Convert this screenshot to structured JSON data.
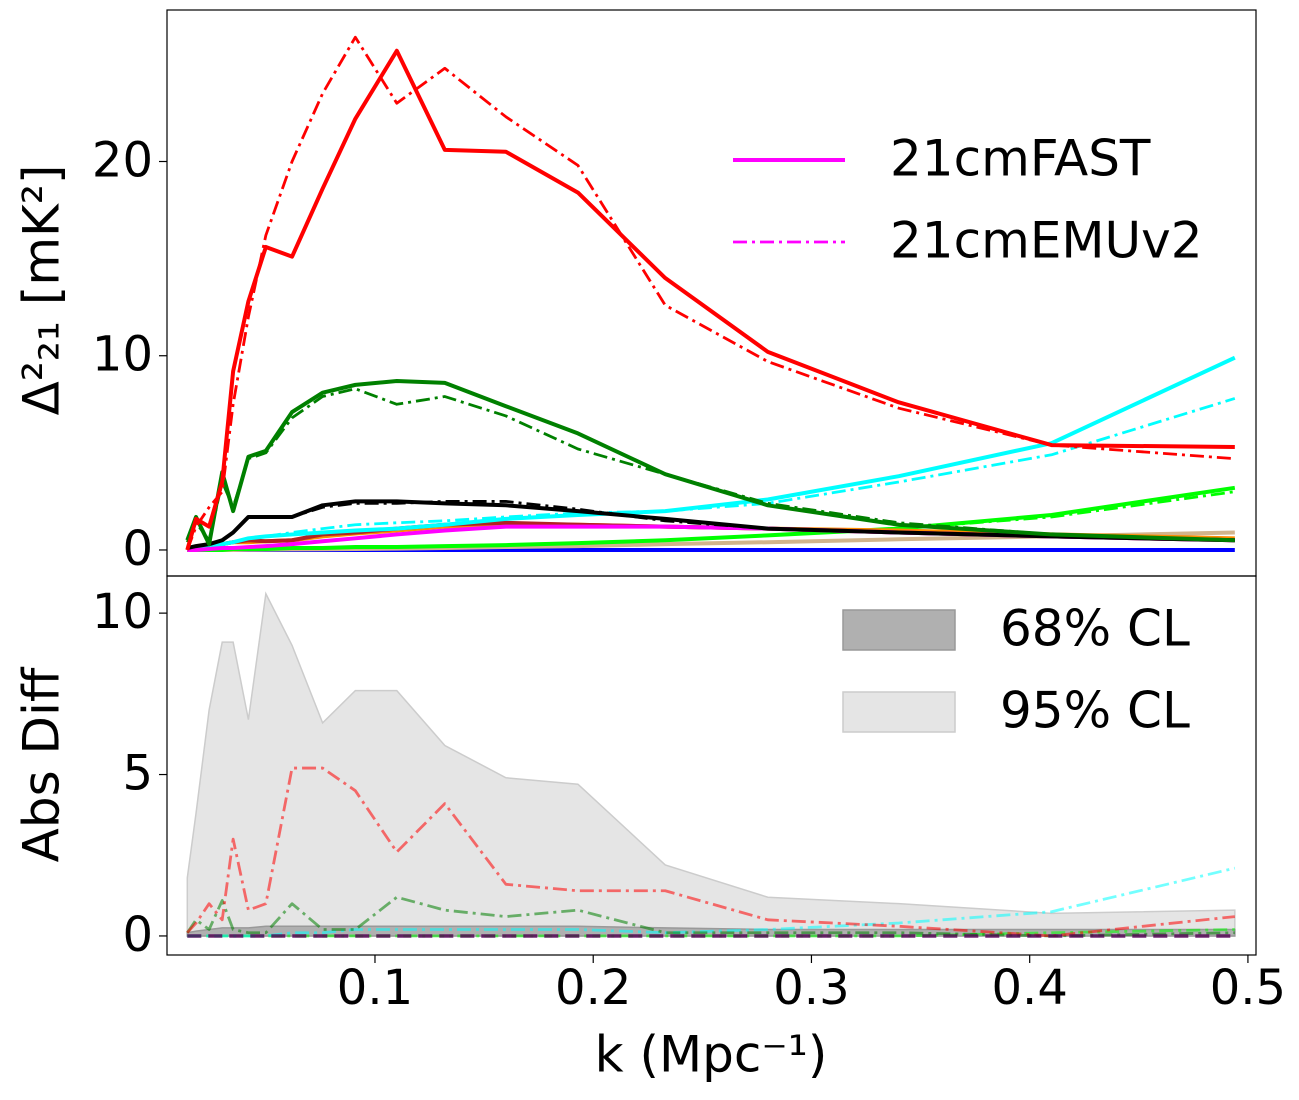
{
  "chart_data": [
    {
      "type": "line",
      "ylabel": "Δ²₂₁ [mK²]",
      "x": [
        0.014,
        0.018,
        0.024,
        0.03,
        0.035,
        0.042,
        0.05,
        0.062,
        0.076,
        0.091,
        0.11,
        0.132,
        0.16,
        0.193,
        0.233,
        0.28,
        0.34,
        0.41,
        0.494
      ],
      "xlim": [
        0.0047,
        0.5037
      ],
      "ylim": [
        -1.34,
        27.8
      ],
      "yticks": [
        0,
        10,
        20
      ],
      "legend": [
        {
          "label": "21cmFAST",
          "color": "#ff00ff",
          "style": "solid"
        },
        {
          "label": "21cmEMUv2",
          "color": "#ff00ff",
          "style": "dashdot"
        }
      ],
      "series": [
        {
          "color": "#0000ff",
          "style": "solid",
          "values": [
            0,
            0,
            0,
            0,
            0,
            0,
            0,
            0,
            0,
            0,
            0,
            0,
            0,
            0,
            0,
            0,
            0,
            0,
            0
          ]
        },
        {
          "color": "#d2b48c",
          "style": "solid",
          "values": [
            0,
            0,
            0,
            0,
            0,
            0.01,
            0.02,
            0.03,
            0.04,
            0.05,
            0.07,
            0.1,
            0.15,
            0.2,
            0.3,
            0.4,
            0.55,
            0.7,
            0.9
          ]
        },
        {
          "color": "#00ff00",
          "style": "solid",
          "values": [
            0,
            0,
            0,
            0,
            0.05,
            0.05,
            0.05,
            0.1,
            0.1,
            0.15,
            0.15,
            0.2,
            0.25,
            0.35,
            0.5,
            0.75,
            1.1,
            1.8,
            3.2
          ]
        },
        {
          "color": "#00ff00",
          "style": "dashdot",
          "values": [
            0,
            0,
            0,
            0,
            0.05,
            0.05,
            0.05,
            0.1,
            0.1,
            0.15,
            0.15,
            0.2,
            0.25,
            0.35,
            0.5,
            0.75,
            1.1,
            1.7,
            3.0
          ]
        },
        {
          "color": "#ff8c00",
          "style": "solid",
          "values": [
            0,
            0.1,
            0.2,
            0.3,
            0.4,
            0.4,
            0.45,
            0.5,
            0.7,
            0.85,
            1.0,
            1.2,
            1.3,
            1.3,
            1.2,
            1.1,
            1.0,
            0.8,
            0.6
          ]
        },
        {
          "color": "#b22222",
          "style": "solid",
          "values": [
            0,
            0.1,
            0.2,
            0.3,
            0.4,
            0.5,
            0.45,
            0.5,
            0.8,
            0.9,
            1.1,
            1.3,
            1.4,
            1.3,
            1.2,
            1.1,
            0.9,
            0.7,
            0.5
          ]
        },
        {
          "color": "#00ffff",
          "style": "solid",
          "values": [
            0,
            0.1,
            0.2,
            0.3,
            0.4,
            0.6,
            0.7,
            0.8,
            0.9,
            1.0,
            1.1,
            1.3,
            1.6,
            1.8,
            2.0,
            2.6,
            3.8,
            5.5,
            9.9
          ]
        },
        {
          "color": "#00ffff",
          "style": "dashdot",
          "values": [
            0,
            0.1,
            0.2,
            0.3,
            0.4,
            0.6,
            0.7,
            0.9,
            1.1,
            1.3,
            1.4,
            1.5,
            1.7,
            1.9,
            2.0,
            2.4,
            3.5,
            4.9,
            7.8
          ]
        },
        {
          "color": "#ff00ff",
          "style": "solid",
          "values": [
            0,
            0,
            0.05,
            0.1,
            0.1,
            0.15,
            0.2,
            0.3,
            0.45,
            0.6,
            0.8,
            1.0,
            1.2,
            1.2,
            1.2,
            1.1,
            0.9,
            0.7,
            0.5
          ]
        },
        {
          "color": "#000000",
          "style": "solid",
          "values": [
            0.1,
            0.2,
            0.3,
            0.5,
            0.9,
            1.7,
            1.7,
            1.7,
            2.3,
            2.5,
            2.5,
            2.4,
            2.3,
            2.0,
            1.6,
            1.1,
            0.9,
            0.7,
            0.5
          ]
        },
        {
          "color": "#000000",
          "style": "dashdot",
          "values": [
            0.1,
            0.2,
            0.3,
            0.5,
            0.9,
            1.7,
            1.7,
            1.7,
            2.2,
            2.4,
            2.4,
            2.5,
            2.5,
            2.1,
            1.5,
            1.1,
            0.9,
            0.7,
            0.5
          ]
        },
        {
          "color": "#008000",
          "style": "solid",
          "values": [
            0.5,
            1.7,
            0.3,
            4.0,
            2.0,
            4.8,
            5.1,
            7.1,
            8.1,
            8.5,
            8.7,
            8.6,
            7.4,
            6.0,
            3.9,
            2.3,
            1.3,
            0.8,
            0.5
          ]
        },
        {
          "color": "#008000",
          "style": "dashdot",
          "values": [
            0.4,
            1.4,
            0.5,
            3.5,
            2.2,
            4.7,
            5.0,
            6.8,
            7.9,
            8.3,
            7.5,
            7.9,
            6.9,
            5.2,
            3.9,
            2.4,
            1.4,
            0.8,
            0.5
          ]
        },
        {
          "color": "#ff0000",
          "style": "solid",
          "values": [
            0,
            1.6,
            1.2,
            3.5,
            9.2,
            12.8,
            15.6,
            15.1,
            18.6,
            22.2,
            25.7,
            20.6,
            20.5,
            18.4,
            14.0,
            10.2,
            7.6,
            5.4,
            5.3
          ]
        },
        {
          "color": "#ff0000",
          "style": "dashdot",
          "values": [
            0,
            1.2,
            2.2,
            3.0,
            7.5,
            12.0,
            16.2,
            20.0,
            23.5,
            26.4,
            23.0,
            24.8,
            22.3,
            19.8,
            12.6,
            9.7,
            7.3,
            5.4,
            4.7
          ]
        }
      ]
    },
    {
      "type": "line",
      "ylabel": "Abs Diff",
      "xlabel": "k (Mpc⁻¹)",
      "x": [
        0.014,
        0.018,
        0.024,
        0.03,
        0.035,
        0.042,
        0.05,
        0.062,
        0.076,
        0.091,
        0.11,
        0.132,
        0.16,
        0.193,
        0.233,
        0.28,
        0.34,
        0.41,
        0.494
      ],
      "xlim": [
        0.0047,
        0.5037
      ],
      "xticks": [
        0.1,
        0.2,
        0.3,
        0.4,
        0.5
      ],
      "ylim": [
        -0.59,
        11.15
      ],
      "yticks": [
        0,
        5,
        10
      ],
      "bands": [
        {
          "name": "95% CL",
          "color": "#e5e5e5",
          "edge": "#cccccc",
          "lower": [
            0,
            0,
            0,
            0,
            0,
            0,
            0,
            0,
            0,
            0,
            0,
            0,
            0,
            0,
            0,
            0,
            0,
            0,
            0
          ],
          "upper": [
            1.8,
            3.8,
            7.0,
            9.1,
            9.1,
            6.7,
            10.6,
            9.0,
            6.6,
            7.6,
            7.6,
            5.9,
            4.9,
            4.7,
            2.2,
            1.2,
            1.0,
            0.7,
            0.8
          ]
        },
        {
          "name": "68% CL",
          "color": "#b0b0b0",
          "edge": "#999999",
          "lower": [
            0,
            0,
            0,
            0,
            0,
            0,
            0,
            0,
            0,
            0,
            0,
            0,
            0,
            0,
            0,
            0,
            0,
            0,
            0
          ],
          "upper": [
            0.1,
            0.15,
            0.2,
            0.25,
            0.25,
            0.25,
            0.3,
            0.3,
            0.3,
            0.3,
            0.3,
            0.3,
            0.3,
            0.3,
            0.25,
            0.2,
            0.2,
            0.2,
            0.2
          ]
        }
      ],
      "series": [
        {
          "color": "#00ff00",
          "style": "dashdot",
          "values": [
            0,
            0,
            0,
            0,
            0,
            0,
            0,
            0,
            0,
            0,
            0,
            0,
            0,
            0,
            0,
            0,
            0,
            0.1,
            0.2
          ]
        },
        {
          "color": "#00ffff",
          "style": "dashdot",
          "values": [
            0,
            0,
            0,
            0,
            0,
            0,
            0,
            0.1,
            0.1,
            0.2,
            0.2,
            0.2,
            0.2,
            0.2,
            0.1,
            0.2,
            0.4,
            0.75,
            2.1
          ]
        },
        {
          "color": "#008000",
          "style": "dashdot",
          "values": [
            0.1,
            0.5,
            0.2,
            1.1,
            0.2,
            0.1,
            0.1,
            1.0,
            0.2,
            0.2,
            1.2,
            0.8,
            0.6,
            0.8,
            0.1,
            0.1,
            0.1,
            0,
            0.1
          ]
        },
        {
          "color": "#ff0000",
          "style": "dashdot",
          "values": [
            0.1,
            0.4,
            1.0,
            0.5,
            3.0,
            0.8,
            1.0,
            5.2,
            5.2,
            4.5,
            2.6,
            4.1,
            1.6,
            1.4,
            1.4,
            0.5,
            0.3,
            0,
            0.6
          ]
        },
        {
          "color": "#ff00ff",
          "style": "dashed",
          "values": [
            0,
            0,
            0,
            0,
            0,
            0,
            0,
            0,
            0,
            0,
            0,
            0,
            0,
            0,
            0,
            0,
            0,
            0,
            0
          ]
        },
        {
          "color": "#000000",
          "style": "dashed",
          "values": [
            0,
            0,
            0,
            0,
            0,
            0,
            0,
            0,
            0,
            0,
            0,
            0,
            0,
            0,
            0,
            0,
            0,
            0,
            0
          ]
        }
      ]
    }
  ]
}
